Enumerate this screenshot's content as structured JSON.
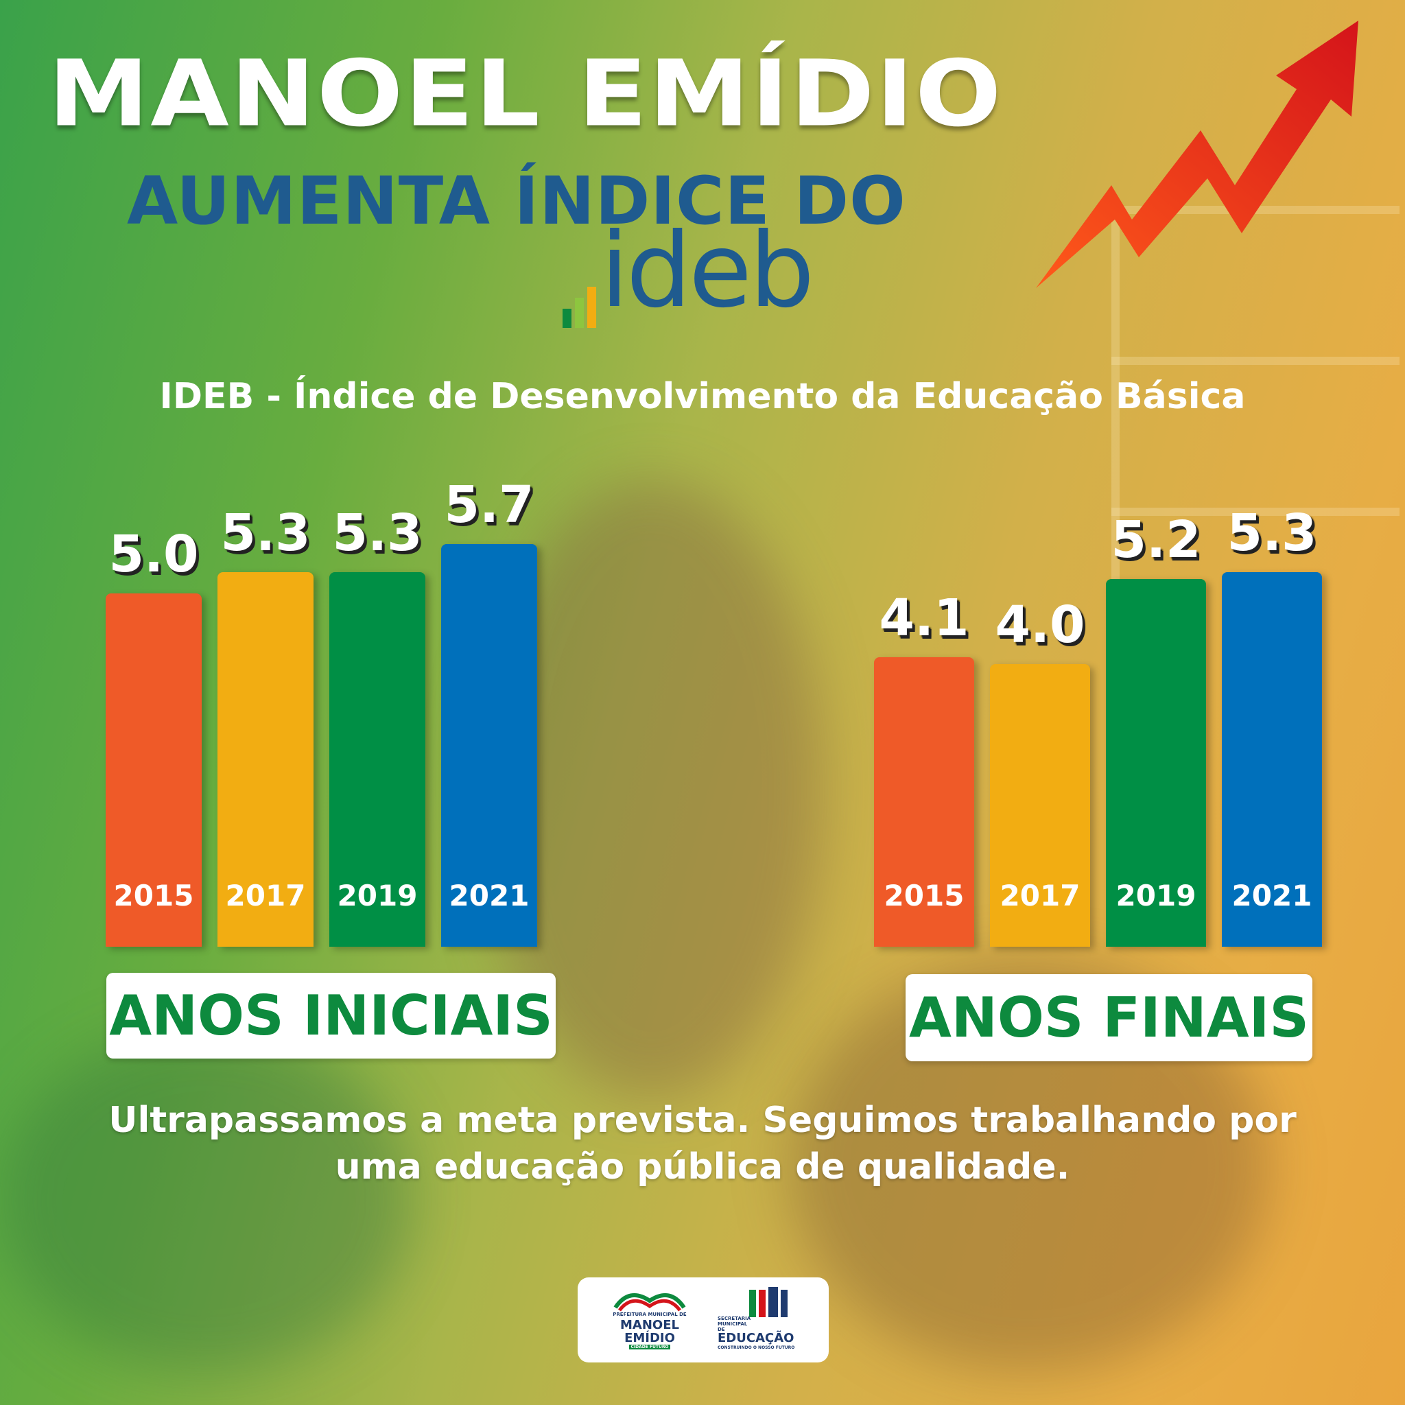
{
  "title_line1": "MANOEL EMÍDIO",
  "title_line2": "AUMENTA ÍNDICE DO",
  "logo_text": "ideb",
  "subtitle": "IDEB - Índice de Desenvolvimento da Educação Básica",
  "message_line1": "Ultrapassamos a meta prevista. Seguimos trabalhando por",
  "message_line2": "uma educação pública de qualidade.",
  "colors": {
    "bar_2015": "#ef5a28",
    "bar_2017": "#f2ad12",
    "bar_2019": "#008f45",
    "bar_2021": "#0070bb",
    "label_text": "#0d8a3e",
    "title_blue": "#1f5b8f",
    "arrow": "#e8321e"
  },
  "chart_data": [
    {
      "type": "bar",
      "title": "ANOS INICIAIS",
      "categories": [
        "2015",
        "2017",
        "2019",
        "2021"
      ],
      "values": [
        5.0,
        5.3,
        5.3,
        5.7
      ],
      "value_labels": [
        "5.0",
        "5.3",
        "5.3",
        "5.7"
      ]
    },
    {
      "type": "bar",
      "title": "ANOS FINAIS",
      "categories": [
        "2015",
        "2017",
        "2019",
        "2021"
      ],
      "values": [
        4.1,
        4.0,
        5.2,
        5.3
      ],
      "value_labels": [
        "4.1",
        "4.0",
        "5.2",
        "5.3"
      ]
    }
  ],
  "footer": {
    "logo1_line1": "PREFEITURA MUNICIPAL DE",
    "logo1_line2": "MANOEL",
    "logo1_line3": "EMÍDIO",
    "logo1_line4": "CIDADE FUTURO",
    "logo2_line1": "SECRETARIA",
    "logo2_line2": "MUNICIPAL",
    "logo2_line3": "DE",
    "logo2_line4": "EDUCAÇÃO",
    "logo2_line5": "CONSTRUINDO O NOSSO FUTURO"
  }
}
